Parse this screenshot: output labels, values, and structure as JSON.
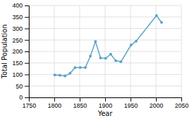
{
  "chart_data": {
    "type": "line",
    "xlabel": "Year",
    "ylabel": "Total Population",
    "x": [
      1801,
      1811,
      1821,
      1831,
      1841,
      1851,
      1861,
      1871,
      1881,
      1891,
      1901,
      1911,
      1921,
      1931,
      1951,
      1961,
      2001,
      2011
    ],
    "values": [
      98,
      96,
      93,
      105,
      130,
      130,
      130,
      180,
      243,
      172,
      170,
      188,
      160,
      155,
      228,
      245,
      356,
      326
    ],
    "color": "#5ba3c9",
    "marker": "circle",
    "xlim": [
      1750,
      2050
    ],
    "ylim": [
      0,
      400
    ],
    "xticks": [
      1750,
      1800,
      1850,
      1900,
      1950,
      2000,
      2050
    ],
    "yticks": [
      0,
      50,
      100,
      150,
      200,
      250,
      300,
      350,
      400
    ],
    "grid": true
  }
}
